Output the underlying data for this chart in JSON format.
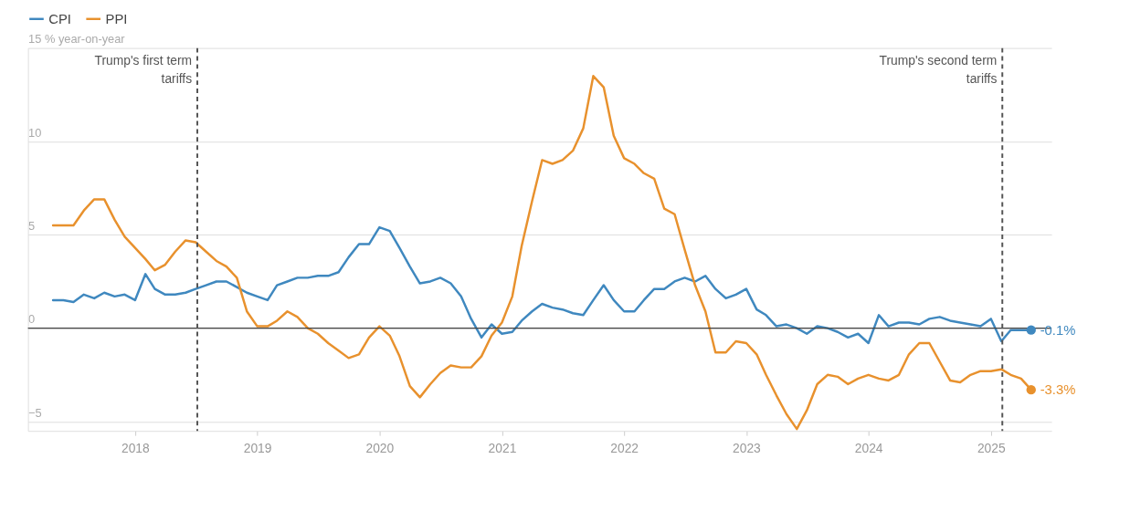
{
  "chart_data": {
    "type": "line",
    "x": [
      "2017-05",
      "2017-06",
      "2017-07",
      "2017-08",
      "2017-09",
      "2017-10",
      "2017-11",
      "2017-12",
      "2018-01",
      "2018-02",
      "2018-03",
      "2018-04",
      "2018-05",
      "2018-06",
      "2018-07",
      "2018-08",
      "2018-09",
      "2018-10",
      "2018-11",
      "2018-12",
      "2019-01",
      "2019-02",
      "2019-03",
      "2019-04",
      "2019-05",
      "2019-06",
      "2019-07",
      "2019-08",
      "2019-09",
      "2019-10",
      "2019-11",
      "2019-12",
      "2020-01",
      "2020-02",
      "2020-03",
      "2020-04",
      "2020-05",
      "2020-06",
      "2020-07",
      "2020-08",
      "2020-09",
      "2020-10",
      "2020-11",
      "2020-12",
      "2021-01",
      "2021-02",
      "2021-03",
      "2021-04",
      "2021-05",
      "2021-06",
      "2021-07",
      "2021-08",
      "2021-09",
      "2021-10",
      "2021-11",
      "2021-12",
      "2022-01",
      "2022-02",
      "2022-03",
      "2022-04",
      "2022-05",
      "2022-06",
      "2022-07",
      "2022-08",
      "2022-09",
      "2022-10",
      "2022-11",
      "2022-12",
      "2023-01",
      "2023-02",
      "2023-03",
      "2023-04",
      "2023-05",
      "2023-06",
      "2023-07",
      "2023-08",
      "2023-09",
      "2023-10",
      "2023-11",
      "2023-12",
      "2024-01",
      "2024-02",
      "2024-03",
      "2024-04",
      "2024-05",
      "2024-06",
      "2024-07",
      "2024-08",
      "2024-09",
      "2024-10",
      "2024-11",
      "2024-12",
      "2025-01",
      "2025-02",
      "2025-03",
      "2025-04",
      "2025-05"
    ],
    "series": [
      {
        "name": "CPI",
        "color": "#3f88bf",
        "values": [
          1.5,
          1.5,
          1.4,
          1.8,
          1.6,
          1.9,
          1.7,
          1.8,
          1.5,
          2.9,
          2.1,
          1.8,
          1.8,
          1.9,
          2.1,
          2.3,
          2.5,
          2.5,
          2.2,
          1.9,
          1.7,
          1.5,
          2.3,
          2.5,
          2.7,
          2.7,
          2.8,
          2.8,
          3.0,
          3.8,
          4.5,
          4.5,
          5.4,
          5.2,
          4.3,
          3.3,
          2.4,
          2.5,
          2.7,
          2.4,
          1.7,
          0.5,
          -0.5,
          0.2,
          -0.3,
          -0.2,
          0.4,
          0.9,
          1.3,
          1.1,
          1.0,
          0.8,
          0.7,
          1.5,
          2.3,
          1.5,
          0.9,
          0.9,
          1.5,
          2.1,
          2.1,
          2.5,
          2.7,
          2.5,
          2.8,
          2.1,
          1.6,
          1.8,
          2.1,
          1.0,
          0.7,
          0.1,
          0.2,
          0.0,
          -0.3,
          0.1,
          0.0,
          -0.2,
          -0.5,
          -0.3,
          -0.8,
          0.7,
          0.1,
          0.3,
          0.3,
          0.2,
          0.5,
          0.6,
          0.4,
          0.3,
          0.2,
          0.1,
          0.5,
          -0.7,
          -0.1,
          -0.1,
          -0.1
        ]
      },
      {
        "name": "PPI",
        "color": "#e8912d",
        "values": [
          5.5,
          5.5,
          5.5,
          6.3,
          6.9,
          6.9,
          5.8,
          4.9,
          4.3,
          3.7,
          3.1,
          3.4,
          4.1,
          4.7,
          4.6,
          4.1,
          3.6,
          3.3,
          2.7,
          0.9,
          0.1,
          0.1,
          0.4,
          0.9,
          0.6,
          0.0,
          -0.3,
          -0.8,
          -1.2,
          -1.6,
          -1.4,
          -0.5,
          0.1,
          -0.4,
          -1.5,
          -3.1,
          -3.7,
          -3.0,
          -2.4,
          -2.0,
          -2.1,
          -2.1,
          -1.5,
          -0.4,
          0.3,
          1.7,
          4.4,
          6.8,
          9.0,
          8.8,
          9.0,
          9.5,
          10.7,
          13.5,
          12.9,
          10.3,
          9.1,
          8.8,
          8.3,
          8.0,
          6.4,
          6.1,
          4.2,
          2.3,
          0.9,
          -1.3,
          -1.3,
          -0.7,
          -0.8,
          -1.4,
          -2.5,
          -3.6,
          -4.6,
          -5.4,
          -4.4,
          -3.0,
          -2.5,
          -2.6,
          -3.0,
          -2.7,
          -2.5,
          -2.7,
          -2.8,
          -2.5,
          -1.4,
          -0.8,
          -0.8,
          -1.8,
          -2.8,
          -2.9,
          -2.5,
          -2.3,
          -2.3,
          -2.2,
          -2.5,
          -2.7,
          -3.3
        ]
      }
    ],
    "xlim": [
      "2017-02-15",
      "2025-07-01"
    ],
    "xticks": [
      "2018",
      "2019",
      "2020",
      "2021",
      "2022",
      "2023",
      "2024",
      "2025"
    ],
    "ylim": [
      -5.5,
      15
    ],
    "yticks": [
      -5,
      0,
      5,
      10,
      {
        "value": 15,
        "label": "15 % year-on-year"
      }
    ],
    "grid": "y",
    "legend": "top left",
    "ref_lines": [
      {
        "axis": "y",
        "value": 0,
        "color": "#444444",
        "line_style": "solid"
      },
      {
        "axis": "x",
        "value": "2018-07-06",
        "label": "Trump's first term tariffs",
        "color": "#555555",
        "line_style": "dashed"
      },
      {
        "axis": "x",
        "value": "2025-02-04",
        "label": "Trump's second term tariffs",
        "color": "#555555",
        "line_style": "dashed"
      }
    ],
    "annotations": [
      {
        "text": "-0.1%",
        "x": "2025-05",
        "y": -0.1
      },
      {
        "text": "-3.3%",
        "x": "2025-05",
        "y": -3.3
      }
    ]
  }
}
